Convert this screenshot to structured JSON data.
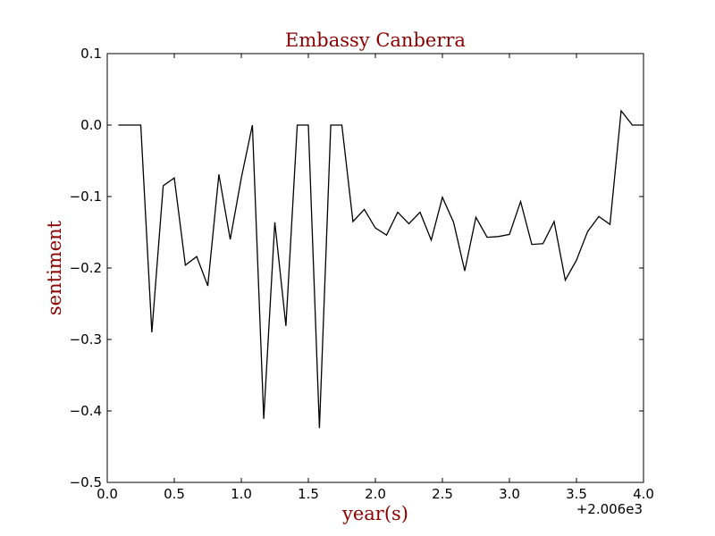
{
  "chart_data": {
    "type": "line",
    "title": "Embassy Canberra",
    "xlabel": "year(s)",
    "ylabel": "sentiment",
    "x_offset_label": "+2.006e3",
    "xlim": [
      0.0,
      4.0
    ],
    "ylim": [
      -0.5,
      0.1
    ],
    "x_ticks": [
      "0.0",
      "0.5",
      "1.0",
      "1.5",
      "2.0",
      "2.5",
      "3.0",
      "3.5",
      "4.0"
    ],
    "y_ticks": [
      "0.1",
      "0.0",
      "−0.1",
      "−0.2",
      "−0.3",
      "−0.4",
      "−0.5"
    ],
    "grid": false,
    "line_color": "#000000",
    "label_color": "#8b0000",
    "series": [
      {
        "x": [
          0.083,
          0.167,
          0.25,
          0.333,
          0.417,
          0.5,
          0.583,
          0.667,
          0.75,
          0.833,
          0.917,
          1.0,
          1.083,
          1.167,
          1.25,
          1.333,
          1.417,
          1.5,
          1.583,
          1.667,
          1.75,
          1.833,
          1.917,
          2.0,
          2.083,
          2.167,
          2.25,
          2.333,
          2.417,
          2.5,
          2.583,
          2.667,
          2.75,
          2.833,
          2.917,
          3.0,
          3.083,
          3.167,
          3.25,
          3.333,
          3.417,
          3.5,
          3.583,
          3.667,
          3.75,
          3.833,
          3.917,
          4.0
        ],
        "y": [
          0.0,
          0.0,
          0.0,
          -0.29,
          -0.085,
          -0.074,
          -0.196,
          -0.184,
          -0.225,
          -0.069,
          -0.16,
          -0.074,
          0.0,
          -0.411,
          -0.136,
          -0.281,
          0.0,
          0.0,
          -0.424,
          0.0,
          0.0,
          -0.135,
          -0.118,
          -0.144,
          -0.154,
          -0.122,
          -0.138,
          -0.122,
          -0.161,
          -0.101,
          -0.136,
          -0.204,
          -0.129,
          -0.157,
          -0.156,
          -0.153,
          -0.107,
          -0.167,
          -0.166,
          -0.135,
          -0.217,
          -0.189,
          -0.149,
          -0.128,
          -0.139,
          0.02,
          0.0,
          0.0
        ]
      }
    ]
  }
}
